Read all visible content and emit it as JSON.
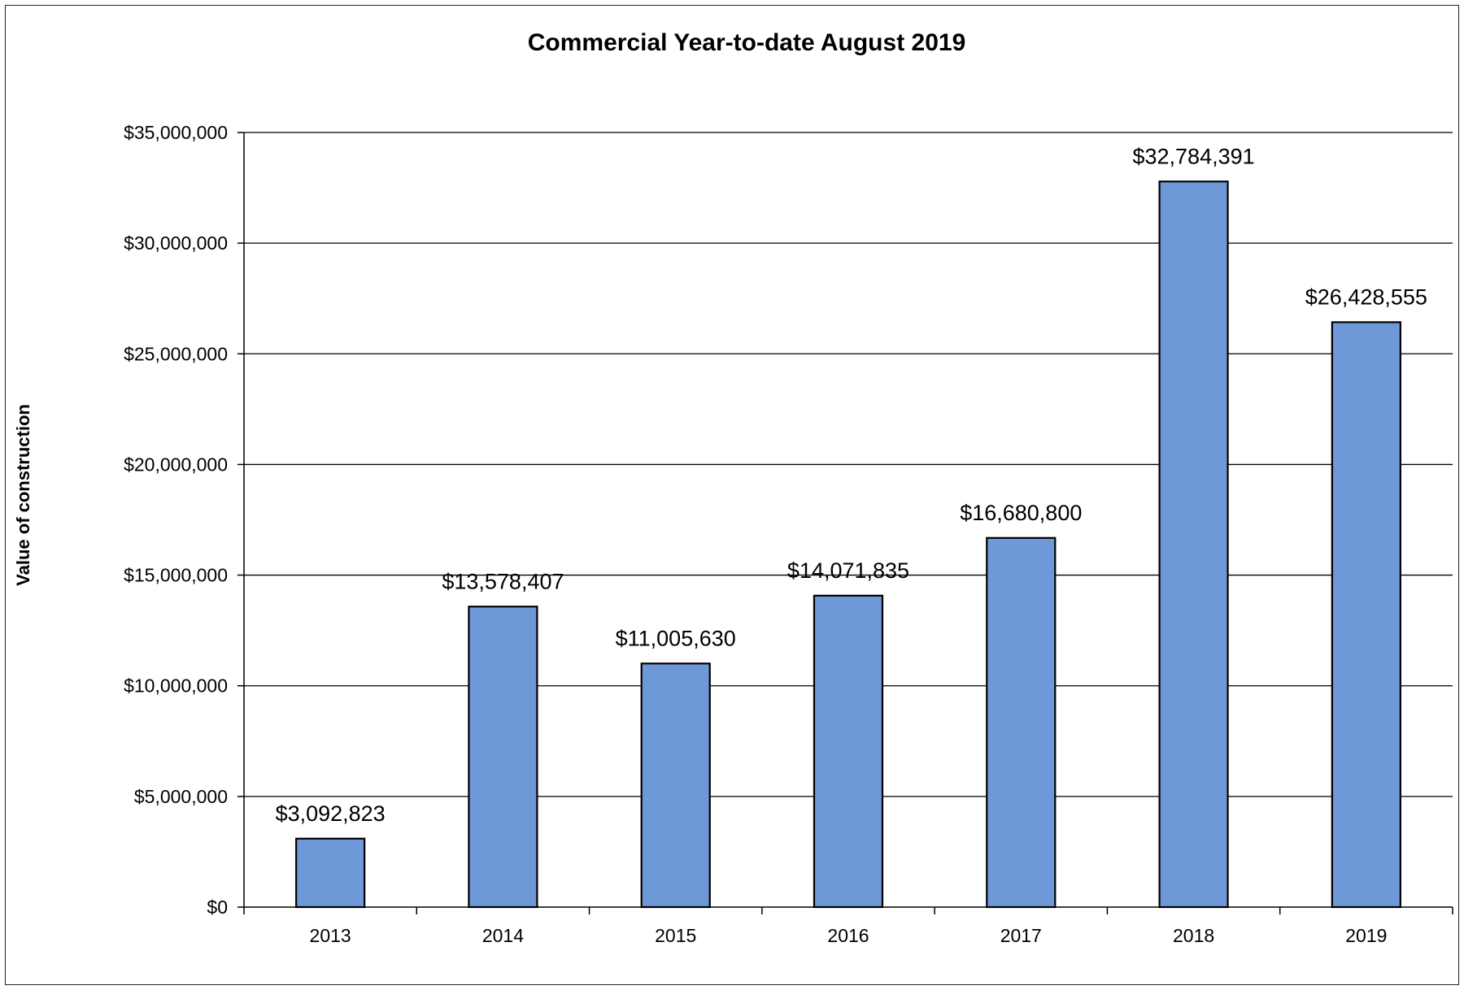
{
  "chart_data": {
    "type": "bar",
    "title": "Commercial Year-to-date August 2019",
    "xlabel": "",
    "ylabel": "Value of construction",
    "categories": [
      "2013",
      "2014",
      "2015",
      "2016",
      "2017",
      "2018",
      "2019"
    ],
    "values": [
      3092823,
      13578407,
      11005630,
      14071835,
      16680800,
      32784391,
      26428555
    ],
    "data_labels": [
      "$3,092,823",
      "$13,578,407",
      "$11,005,630",
      "$14,071,835",
      "$16,680,800",
      "$32,784,391",
      "$26,428,555"
    ],
    "ylim": [
      0,
      35000000
    ],
    "yticks": [
      0,
      5000000,
      10000000,
      15000000,
      20000000,
      25000000,
      30000000,
      35000000
    ],
    "ytick_labels": [
      "$0",
      "$5,000,000",
      "$10,000,000",
      "$15,000,000",
      "$20,000,000",
      "$25,000,000",
      "$30,000,000",
      "$35,000,000"
    ],
    "grid": true,
    "legend": "none",
    "bar_color": "#6f98d8"
  }
}
